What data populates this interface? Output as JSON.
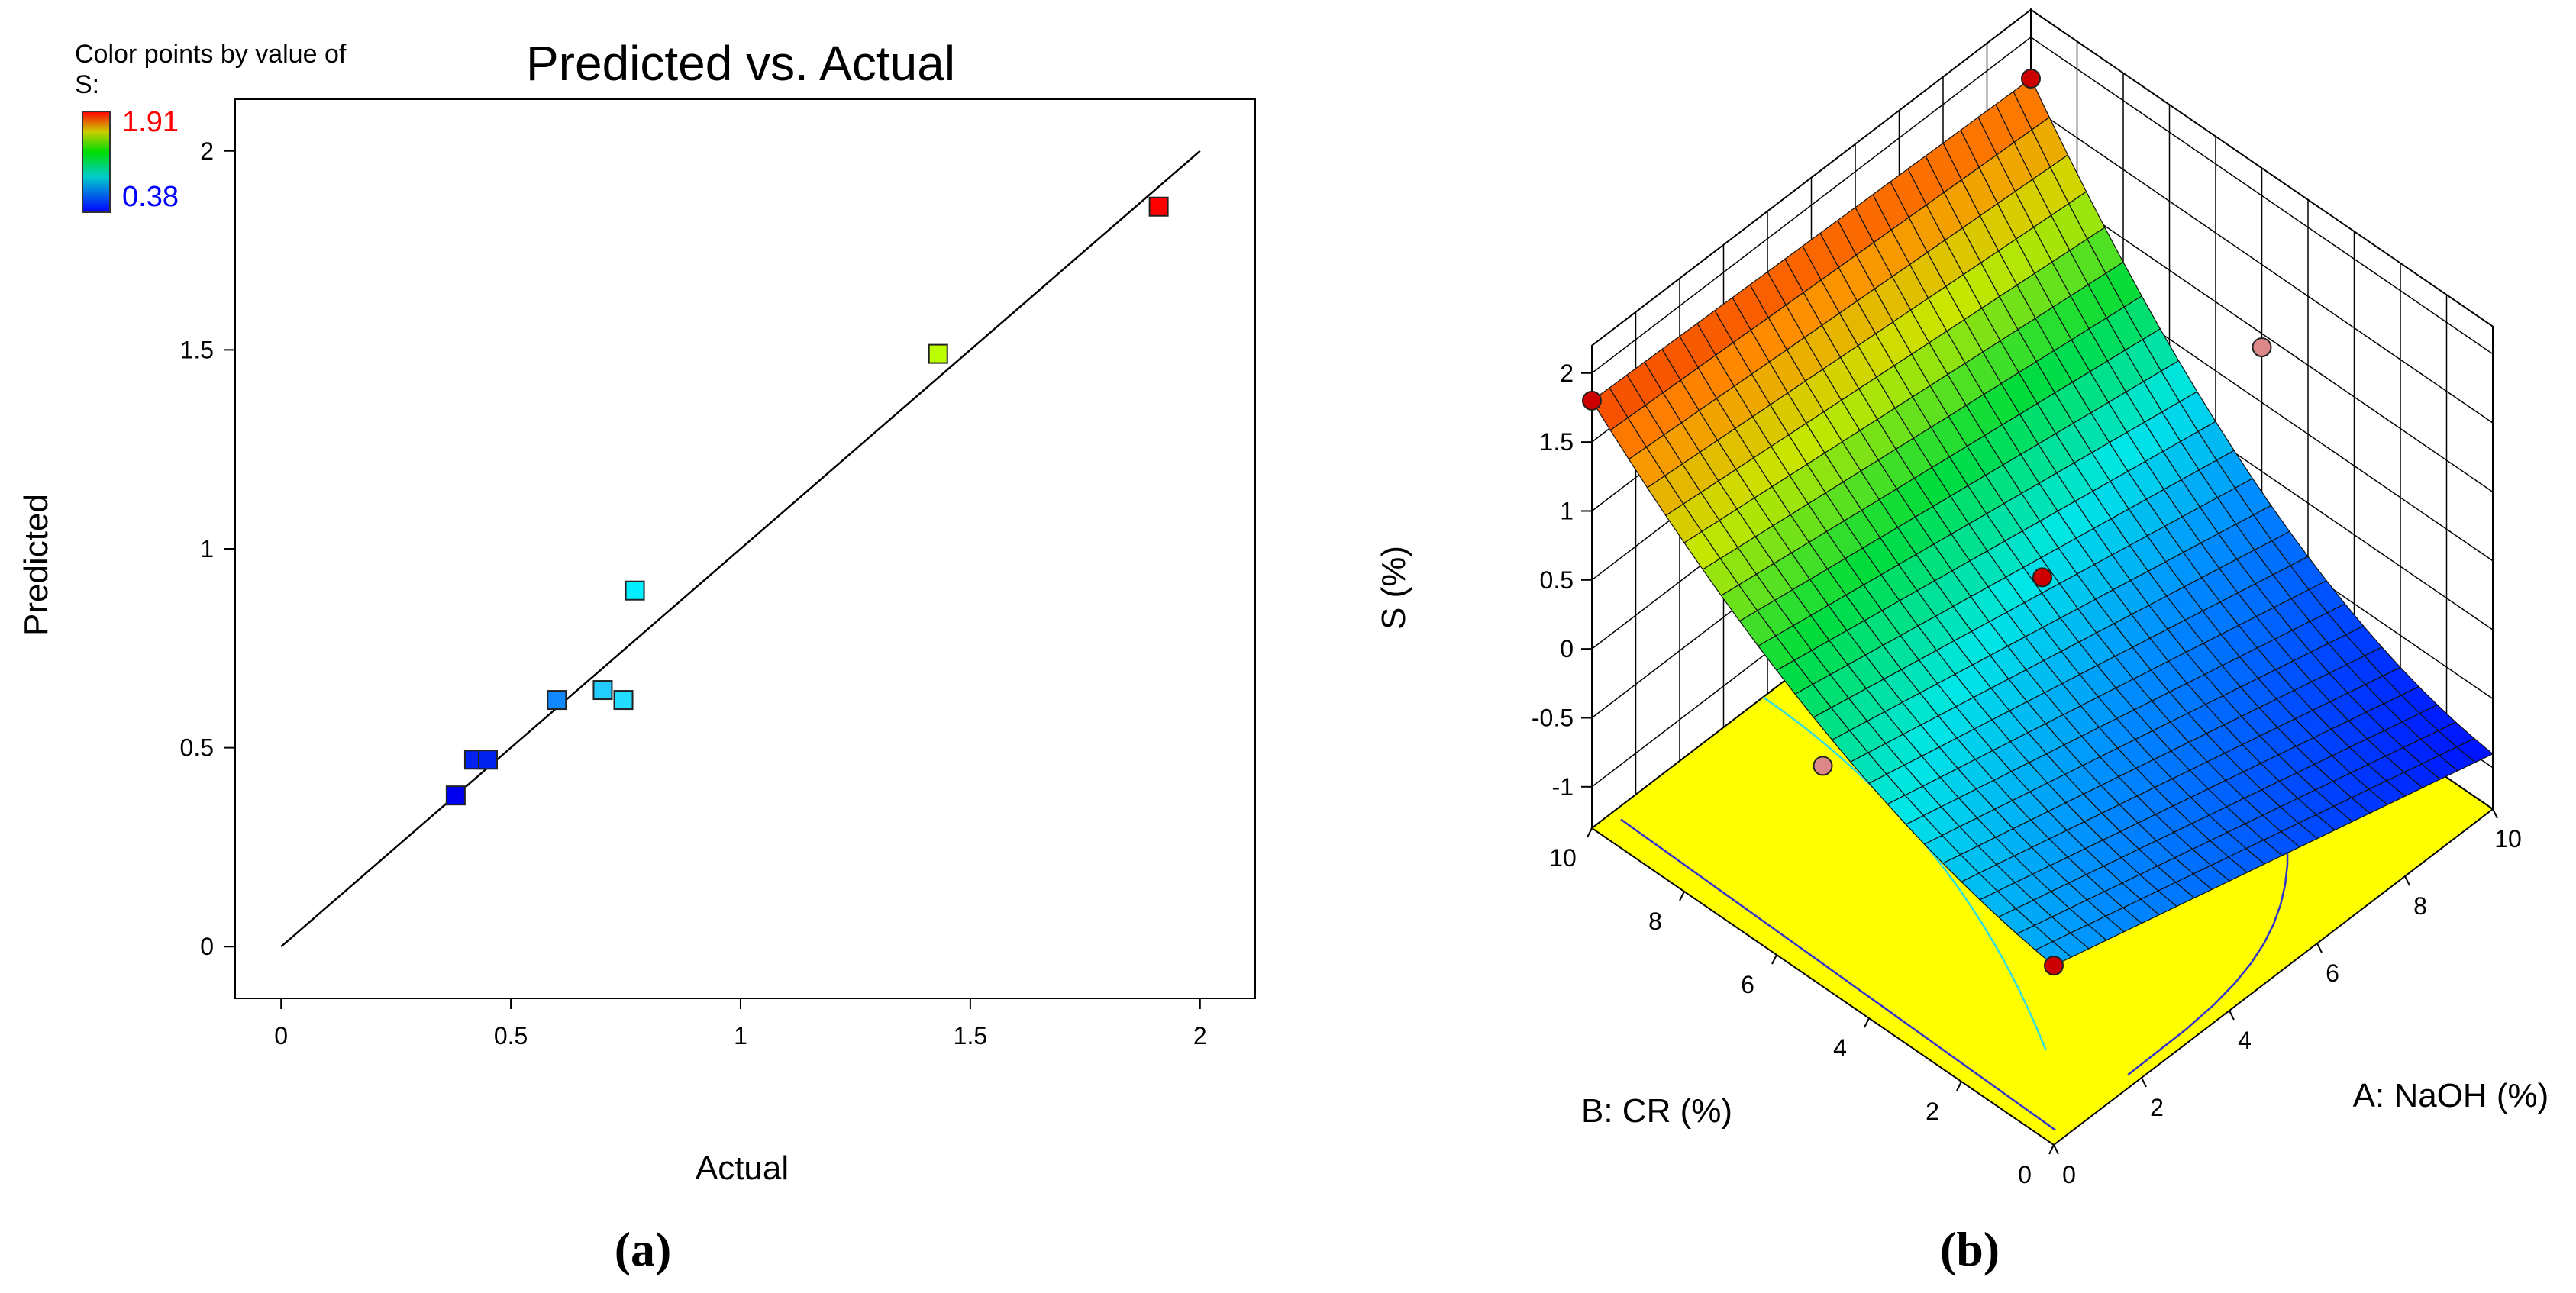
{
  "colors": {
    "legend_high": "#ff0000",
    "legend_low": "#0000ff",
    "axis": "#000000",
    "floor": "#ffff00",
    "contour_cyan": "#33dddd",
    "contour_blue": "#3333cc",
    "design_point": "#cc0000",
    "design_point_faint": "#dd8888"
  },
  "panels": {
    "a_label": "(a)",
    "b_label": "(b)"
  },
  "chart_data": [
    {
      "type": "scatter",
      "title": "Predicted vs. Actual",
      "xlabel": "Actual",
      "ylabel": "Predicted",
      "xlim": [
        -0.1,
        2.12
      ],
      "ylim": [
        -0.13,
        2.13
      ],
      "x_ticks": [
        "0",
        "0.5",
        "1",
        "1.5",
        "2"
      ],
      "y_ticks": [
        "0",
        "0.5",
        "1",
        "1.5",
        "2"
      ],
      "legend": {
        "title_line1": "Color points by value of",
        "title_line2": "S:",
        "max_label": "1.91",
        "min_label": "0.38",
        "placement": "top-left"
      },
      "reference_line": {
        "x": [
          0,
          2
        ],
        "y": [
          0,
          2
        ]
      },
      "points": [
        {
          "x": 0.38,
          "y": 0.38,
          "color": "#0000ee"
        },
        {
          "x": 0.42,
          "y": 0.47,
          "color": "#0022ee"
        },
        {
          "x": 0.45,
          "y": 0.47,
          "color": "#0022ee"
        },
        {
          "x": 0.6,
          "y": 0.62,
          "color": "#1188ff"
        },
        {
          "x": 0.7,
          "y": 0.645,
          "color": "#22ccff"
        },
        {
          "x": 0.745,
          "y": 0.62,
          "color": "#22ddff"
        },
        {
          "x": 0.77,
          "y": 0.895,
          "color": "#00eeff"
        },
        {
          "x": 1.43,
          "y": 1.49,
          "color": "#bbff00"
        },
        {
          "x": 1.91,
          "y": 1.86,
          "color": "#ff0000"
        }
      ]
    },
    {
      "type": "surface3d",
      "zlabel": "S (%)",
      "xlabel": "A: NaOH (%)",
      "ylabel": "B: CR (%)",
      "z_ticks": [
        "2",
        "1.5",
        "1",
        "0.5",
        "0",
        "-0.5",
        "-1"
      ],
      "zlim": [
        -1.3,
        2.2
      ],
      "a_ticks": [
        "0",
        "2",
        "4",
        "6",
        "8",
        "10"
      ],
      "b_ticks": [
        "0",
        "2",
        "4",
        "6",
        "8",
        "10"
      ],
      "surface_corners": {
        "A0_B0": 0.0,
        "A0_B10": 1.8,
        "A10_B0": -0.9,
        "A10_B10": 1.7
      },
      "design_points": [
        {
          "a": 0,
          "b": 10,
          "s": 1.8
        },
        {
          "a": 10,
          "b": 10,
          "s": 1.7
        },
        {
          "a": 0,
          "b": 0,
          "s": 0.0
        },
        {
          "a": 5,
          "b": 5,
          "s": 0.45
        },
        {
          "a": 0,
          "b": 5,
          "s": 0.3
        },
        {
          "a": 10,
          "b": 5,
          "s": 0.9
        }
      ]
    }
  ]
}
